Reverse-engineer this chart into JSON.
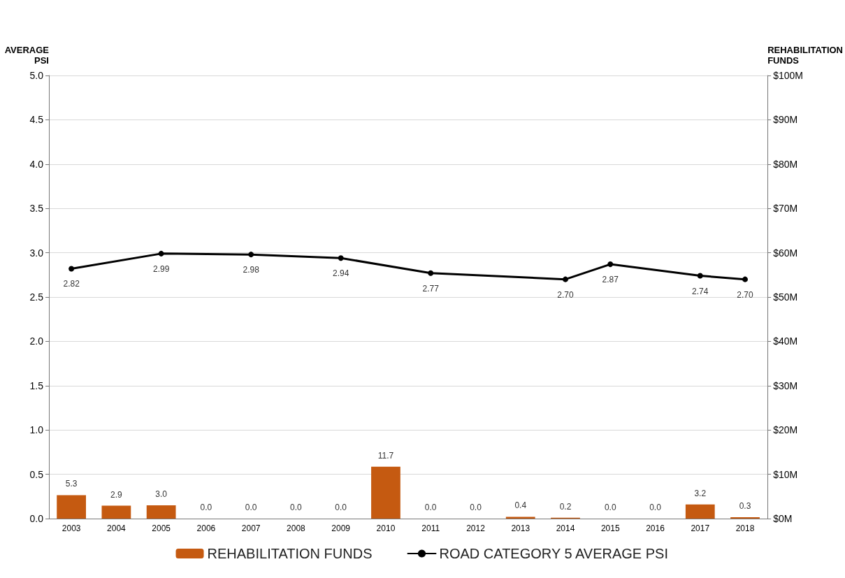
{
  "chart_data": {
    "type": "bar",
    "ylabel": "AVERAGE PSI",
    "y2label": "REHABILITATION FUNDS",
    "categories": [
      "2003",
      "2004",
      "2005",
      "2006",
      "2007",
      "2008",
      "2009",
      "2010",
      "2011",
      "2012",
      "2013",
      "2014",
      "2015",
      "2016",
      "2017",
      "2018"
    ],
    "series": [
      {
        "name": "REHABILITATION FUNDS",
        "axis": "y2",
        "color": "#c55a11",
        "values": [
          5.3,
          2.9,
          3.0,
          0,
          0,
          0,
          0,
          11.7,
          0,
          0,
          0.4,
          0.2,
          0,
          0,
          3.2,
          0.3
        ],
        "value_labels": [
          "5.3",
          "2.9",
          "3.0",
          "0.0",
          "0.0",
          "0.0",
          "0.0",
          "11.7",
          "0.0",
          "0.0",
          "0.4",
          "0.2",
          "0.0",
          "0.0",
          "3.2",
          "0.3"
        ]
      },
      {
        "name": "ROAD CATEGORY 5 AVERAGE PSI",
        "type": "line",
        "color": "#000000",
        "marker": "circle",
        "line_style": "solid",
        "values": [
          2.82,
          null,
          2.99,
          null,
          2.98,
          null,
          2.94,
          null,
          2.77,
          null,
          null,
          2.7,
          2.87,
          null,
          2.74,
          2.7
        ],
        "value_labels": [
          "2.82",
          null,
          "2.99",
          null,
          "2.98",
          null,
          "2.94",
          null,
          "2.77",
          null,
          null,
          "2.70",
          "2.87",
          null,
          "2.74",
          "2.70"
        ]
      }
    ],
    "ylim": [
      0,
      5
    ],
    "yticks": [
      {
        "value": 0,
        "label": "0.0"
      },
      {
        "value": 0.5,
        "label": "0.5"
      },
      {
        "value": 1,
        "label": "1.0"
      },
      {
        "value": 1.5,
        "label": "1.5"
      },
      {
        "value": 2,
        "label": "2.0"
      },
      {
        "value": 2.5,
        "label": "2.5"
      },
      {
        "value": 3,
        "label": "3.0"
      },
      {
        "value": 3.5,
        "label": "3.5"
      },
      {
        "value": 4,
        "label": "4.0"
      },
      {
        "value": 4.5,
        "label": "4.5"
      },
      {
        "value": 5,
        "label": "5.0"
      }
    ],
    "y2lim": [
      0,
      100
    ],
    "y2ticks": [
      {
        "value": 0,
        "label": "$0M"
      },
      {
        "value": 10,
        "label": "$10M"
      },
      {
        "value": 20,
        "label": "$20M"
      },
      {
        "value": 30,
        "label": "$30M"
      },
      {
        "value": 40,
        "label": "$40M"
      },
      {
        "value": 50,
        "label": "$50M"
      },
      {
        "value": 60,
        "label": "$60M"
      },
      {
        "value": 70,
        "label": "$70M"
      },
      {
        "value": 80,
        "label": "$80M"
      },
      {
        "value": 90,
        "label": "$90M"
      },
      {
        "value": 100,
        "label": "$100M"
      }
    ],
    "grid": "y",
    "legend": "bottom"
  }
}
